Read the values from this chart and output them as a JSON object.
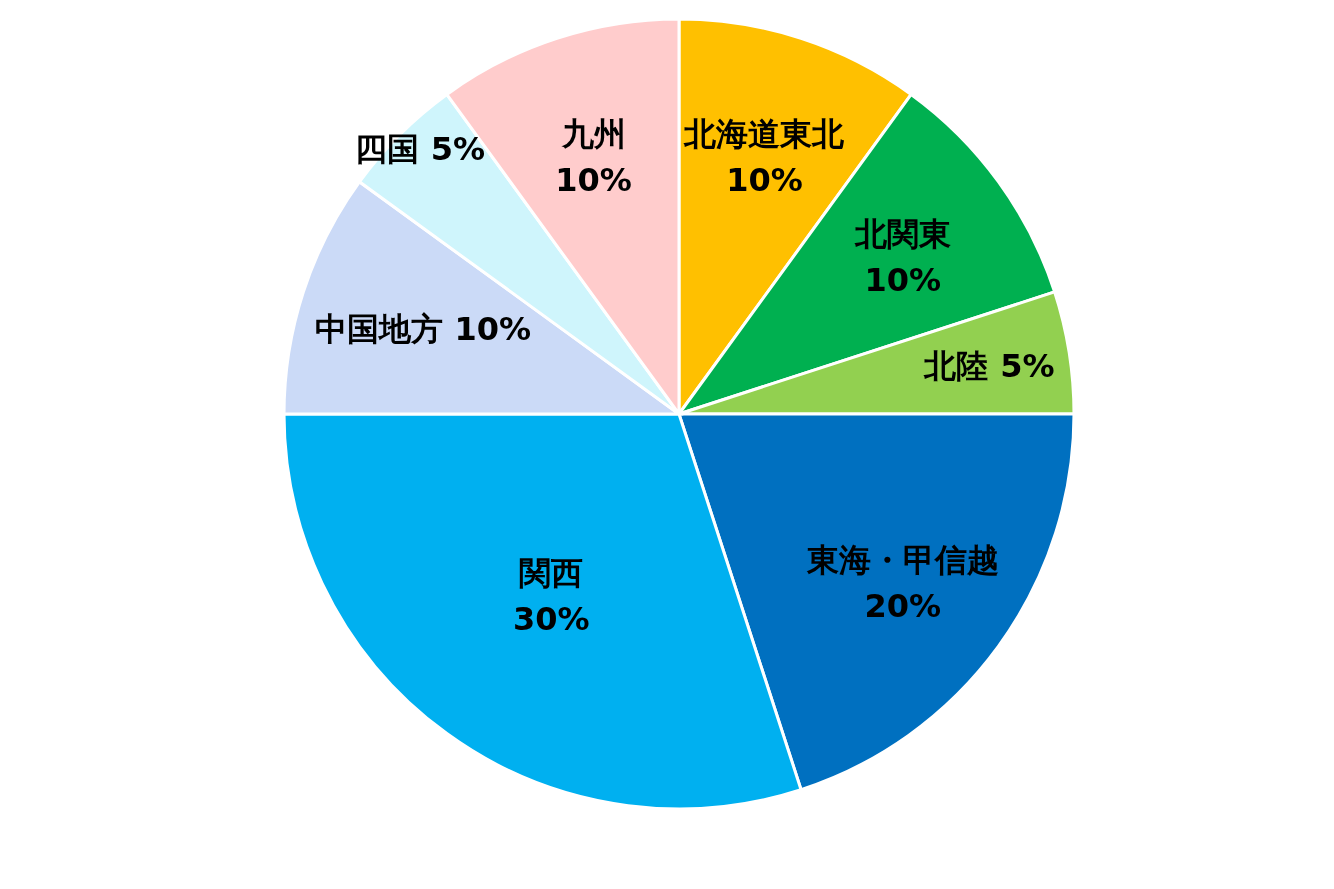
{
  "chart_data": {
    "type": "pie",
    "categories": [
      "北海道東北",
      "北関東",
      "北陸",
      "東海・甲信越",
      "関西",
      "中国地方",
      "四国",
      "九州"
    ],
    "values": [
      10,
      10,
      5,
      20,
      30,
      10,
      5,
      10
    ],
    "value_labels": [
      "10%",
      "10%",
      "5%",
      "20%",
      "30%",
      "10%",
      "5%",
      "10%"
    ],
    "colors": [
      "#ffc000",
      "#00b050",
      "#92d050",
      "#0070c0",
      "#00b0f0",
      "#cbdaf7",
      "#cff5fc",
      "#ffcccc"
    ]
  }
}
